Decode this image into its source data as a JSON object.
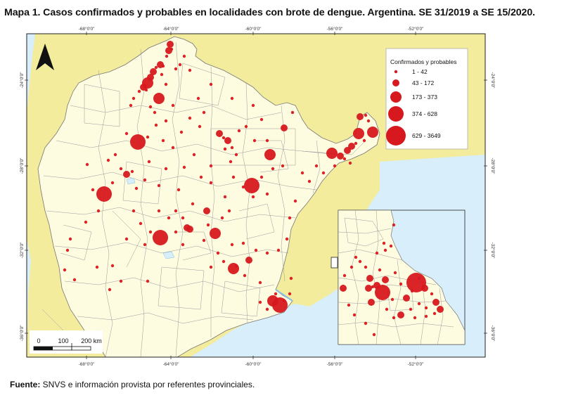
{
  "title": "Mapa 1. Casos confirmados y probables en localidades con brote de dengue. Argentina. SE 31/2019 a SE 15/2020.",
  "source": {
    "label": "Fuente:",
    "text": " SNVS e información provista por referentes provinciales."
  },
  "axes": {
    "top_labels": [
      "-68°0'0\"",
      "-64°0'0\"",
      "-60°0'0\"",
      "-56°0'0\"",
      "-52°0'0\""
    ],
    "bottom_labels": [
      "-68°0'0\"",
      "-64°0'0\"",
      "-60°0'0\"",
      "-56°0'0\"",
      "-52°0'0\""
    ],
    "left_labels": [
      "-24°0'0\"",
      "-28°0'0\"",
      "-32°0'0\"",
      "-36°0'0\""
    ],
    "right_labels": [
      "-24°0'0\"",
      "-28°0'0\"",
      "-32°0'0\"",
      "-36°0'0\""
    ]
  },
  "legend": {
    "title": "Confirmados y probables",
    "classes": [
      {
        "label": "1 - 42"
      },
      {
        "label": "43 - 172"
      },
      {
        "label": "173 - 373"
      },
      {
        "label": "374 - 628"
      },
      {
        "label": "629 - 3649"
      }
    ]
  },
  "scalebar": {
    "labels": [
      "0",
      "100",
      "200 km"
    ]
  },
  "north_arrow": {
    "icon": "north-arrow-icon"
  },
  "colors": {
    "land_argentina": "#fdfbe0",
    "land_neighbors": "#f3ec9c",
    "water": "#d8eefa",
    "borders": "#8a8a8a",
    "points": "#d7181e",
    "frame": "#222222"
  }
}
